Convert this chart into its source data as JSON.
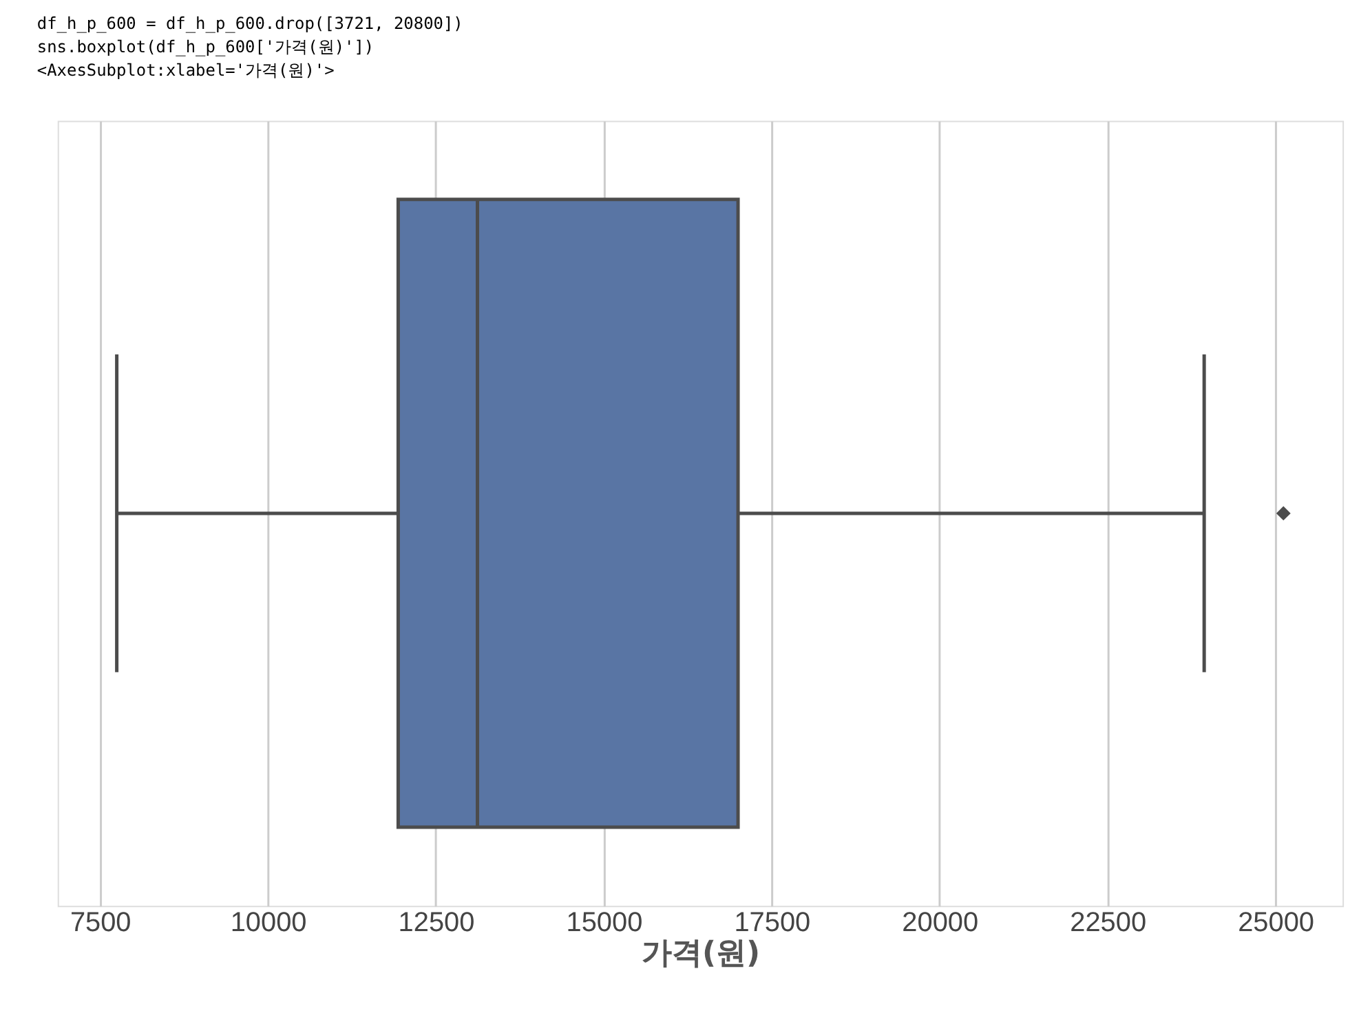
{
  "chart_data": {
    "type": "box",
    "annotations": [
      "df_h_p_600 = df_h_p_600.drop([3721, 20800])",
      "sns.boxplot(df_h_p_600['가격(원)'])",
      "<AxesSubplot:xlabel='가격(원)'>"
    ],
    "xlabel": "가격(원)",
    "categories": [
      null
    ],
    "orientation": "horizontal",
    "series": [
      {
        "color": "#5975a4",
        "boxes": [
          {
            "low": 7750,
            "q1": 11940,
            "median": 13120,
            "q3": 17000,
            "high": 23940,
            "outliers": [
              25120
            ]
          }
        ]
      }
    ],
    "xlim": [
      6870,
      26000
    ],
    "xticks": [
      7500,
      10000,
      12500,
      15000,
      17500,
      20000,
      22500,
      25000
    ],
    "grid": "x"
  }
}
